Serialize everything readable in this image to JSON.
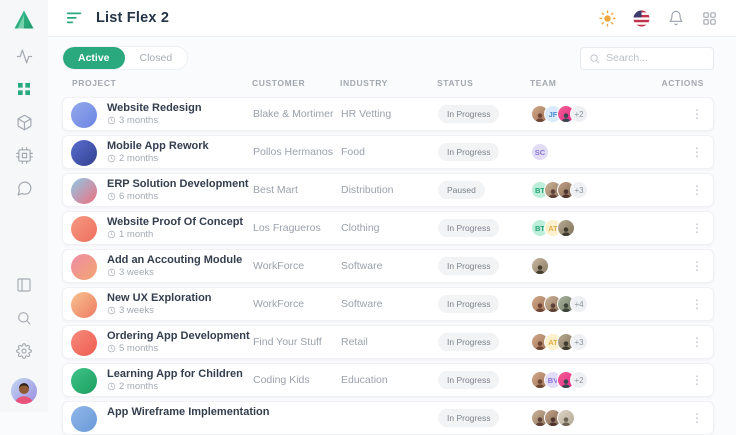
{
  "header": {
    "title": "List Flex 2",
    "icons": [
      "menu-toggle-icon",
      "sun-icon",
      "us-flag-icon",
      "bell-icon",
      "apps-grid-icon"
    ]
  },
  "sidebar": {
    "nav_icons": [
      "activity-icon",
      "dashboard-grid-icon",
      "package-icon",
      "cpu-icon",
      "chat-icon"
    ],
    "active_item": "dashboard-grid-icon",
    "bottom_icons": [
      "layout-icon",
      "search-icon",
      "settings-icon"
    ],
    "accent_color": "#2aa97e"
  },
  "toolbar": {
    "filter_active": "Active",
    "filter_closed": "Closed",
    "search_placeholder": "Search..."
  },
  "table": {
    "columns": [
      "Project",
      "Customer",
      "Industry",
      "Status",
      "Team",
      "Actions"
    ],
    "rows": [
      {
        "project": "Website Redesign",
        "duration": "3 months",
        "customer": "Blake & Mortimer",
        "industry": "HR Vetting",
        "status": "In Progress",
        "avatar": {
          "c1": "#96aaee",
          "c2": "#6a84e0"
        },
        "team": [
          {
            "t": "photo",
            "b1": "#d3a98c",
            "b2": "#9b6f52",
            "fg": "#6d4534"
          },
          {
            "t": "init",
            "x": "JF",
            "bg": "#d8eafc",
            "fg": "#4a8fd4"
          },
          {
            "t": "photo",
            "b1": "#f06292",
            "b2": "#e9258c",
            "fg": "#37474f"
          },
          {
            "t": "more",
            "x": "+2"
          }
        ]
      },
      {
        "project": "Mobile App Rework",
        "duration": "2 months",
        "customer": "Pollos Hermanos",
        "industry": "Food",
        "status": "In Progress",
        "avatar": {
          "c1": "#5a6fd0",
          "c2": "#32408f"
        },
        "team": [
          {
            "t": "init",
            "x": "SC",
            "bg": "#e2dcf7",
            "fg": "#8a75d6"
          }
        ]
      },
      {
        "project": "ERP Solution Development",
        "duration": "6 months",
        "customer": "Best Mart",
        "industry": "Distribution",
        "status": "Paused",
        "avatar": {
          "c1": "#8ec9e8",
          "c2": "#ef6e7e"
        },
        "team": [
          {
            "t": "init",
            "x": "BT",
            "bg": "#bdeeda",
            "fg": "#26a277"
          },
          {
            "t": "photo",
            "b1": "#cbb49a",
            "b2": "#8d7258",
            "fg": "#5d4037"
          },
          {
            "t": "photo",
            "b1": "#c4a389",
            "b2": "#7d6450",
            "fg": "#4e342e"
          },
          {
            "t": "more",
            "x": "+3"
          }
        ]
      },
      {
        "project": "Website Proof Of Concept",
        "duration": "1 month",
        "customer": "Los Fragueros",
        "industry": "Clothing",
        "status": "In Progress",
        "avatar": {
          "c1": "#f59a84",
          "c2": "#ee6f5c"
        },
        "team": [
          {
            "t": "init",
            "x": "BT",
            "bg": "#bdeeda",
            "fg": "#26a277"
          },
          {
            "t": "init",
            "x": "AT",
            "bg": "#fdf0cd",
            "fg": "#dfae46"
          },
          {
            "t": "photo",
            "b1": "#b9ac96",
            "b2": "#7e7258",
            "fg": "#3e3a30"
          }
        ]
      },
      {
        "project": "Add an Accouting Module",
        "duration": "3 weeks",
        "customer": "WorkForce",
        "industry": "Software",
        "status": "In Progress",
        "avatar": {
          "c1": "#ef8ba8",
          "c2": "#f2a66e"
        },
        "team": [
          {
            "t": "photo",
            "b1": "#c9b8a2",
            "b2": "#8a7a62",
            "fg": "#463c2e"
          }
        ]
      },
      {
        "project": "New UX Exploration",
        "duration": "3 weeks",
        "customer": "WorkForce",
        "industry": "Software",
        "status": "In Progress",
        "avatar": {
          "c1": "#f7c390",
          "c2": "#ee7a62"
        },
        "team": [
          {
            "t": "photo",
            "b1": "#d3a98c",
            "b2": "#9b6f52",
            "fg": "#6d4534"
          },
          {
            "t": "photo",
            "b1": "#cbb49a",
            "b2": "#8d7258",
            "fg": "#5d4037"
          },
          {
            "t": "photo",
            "b1": "#aab4a0",
            "b2": "#6f7a66",
            "fg": "#3c4438"
          },
          {
            "t": "more",
            "x": "+4"
          }
        ]
      },
      {
        "project": "Ordering App Development",
        "duration": "5 months",
        "customer": "Find Your Stuff",
        "industry": "Retail",
        "status": "In Progress",
        "avatar": {
          "c1": "#f58b7d",
          "c2": "#ef5c50"
        },
        "team": [
          {
            "t": "photo",
            "b1": "#d3a98c",
            "b2": "#9b6f52",
            "fg": "#6d4534"
          },
          {
            "t": "init",
            "x": "AT",
            "bg": "#fdf0cd",
            "fg": "#dfae46"
          },
          {
            "t": "photo",
            "b1": "#b9ac96",
            "b2": "#7e7258",
            "fg": "#3e3a30"
          },
          {
            "t": "more",
            "x": "+3"
          }
        ]
      },
      {
        "project": "Learning App for Children",
        "duration": "2 months",
        "customer": "Coding Kids",
        "industry": "Education",
        "status": "In Progress",
        "avatar": {
          "c1": "#3ec487",
          "c2": "#1d9d60"
        },
        "team": [
          {
            "t": "photo",
            "b1": "#d3a98c",
            "b2": "#9b6f52",
            "fg": "#6d4534"
          },
          {
            "t": "init",
            "x": "BV",
            "bg": "#e2dcf7",
            "fg": "#8a75d6"
          },
          {
            "t": "photo",
            "b1": "#f06292",
            "b2": "#e9258c",
            "fg": "#37474f"
          },
          {
            "t": "more",
            "x": "+2"
          }
        ]
      },
      {
        "project": "App Wireframe Implementation",
        "duration": "",
        "customer": "",
        "industry": "",
        "status": "In Progress",
        "avatar": {
          "c1": "#8fb6e8",
          "c2": "#6a99d8"
        },
        "team": [
          {
            "t": "photo",
            "b1": "#cbb49a",
            "b2": "#8d7258",
            "fg": "#5d4037"
          },
          {
            "t": "photo",
            "b1": "#c4a389",
            "b2": "#7d6450",
            "fg": "#4e342e"
          },
          {
            "t": "photo",
            "b1": "#ddd5c8",
            "b2": "#b3a893",
            "fg": "#6e6454"
          }
        ]
      }
    ]
  }
}
